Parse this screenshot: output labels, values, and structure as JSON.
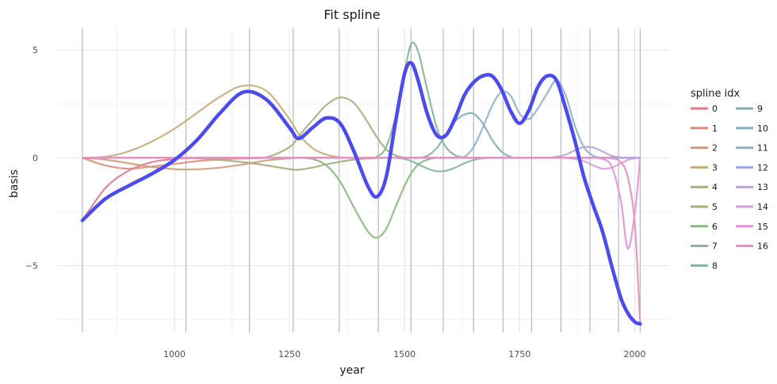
{
  "chart_data": {
    "type": "line",
    "title": "Fit spline",
    "xlabel": "year",
    "ylabel": "basis",
    "xlim": [
      745,
      2075
    ],
    "ylim": [
      -8.1,
      6.0
    ],
    "x_ticks": [
      1000,
      1250,
      1500,
      1750,
      2000
    ],
    "x_tick_labels": [
      "1000",
      "1250",
      "1500",
      "1750",
      "2000"
    ],
    "y_ticks": [
      -5,
      0,
      5
    ],
    "y_tick_labels": [
      "−5",
      "0",
      "5"
    ],
    "grid": true,
    "legend_title": "spline idx",
    "legend_position": "right",
    "knots": [
      800,
      1025,
      1163,
      1258,
      1358,
      1443,
      1514,
      1584,
      1650,
      1714,
      1776,
      1840,
      1903,
      1965,
      2012
    ],
    "x": [
      800,
      850,
      900,
      950,
      1000,
      1050,
      1100,
      1150,
      1200,
      1250,
      1270,
      1300,
      1330,
      1360,
      1390,
      1420,
      1440,
      1460,
      1480,
      1500,
      1515,
      1530,
      1550,
      1570,
      1590,
      1610,
      1630,
      1650,
      1670,
      1690,
      1710,
      1730,
      1750,
      1770,
      1790,
      1810,
      1830,
      1850,
      1870,
      1890,
      1910,
      1930,
      1950,
      1970,
      1985,
      2000,
      2012
    ],
    "series": [
      {
        "name": "0",
        "color": "#e07b87",
        "values": [
          -2.9,
          -1.4,
          -0.6,
          -0.2,
          -0.05,
          0,
          0,
          0,
          0,
          0,
          0,
          0,
          0,
          0,
          0,
          0,
          0,
          0,
          0,
          0,
          0,
          0,
          0,
          0,
          0,
          0,
          0,
          0,
          0,
          0,
          0,
          0,
          0,
          0,
          0,
          0,
          0,
          0,
          0,
          0,
          0,
          0,
          0,
          0,
          0,
          0,
          0
        ]
      },
      {
        "name": "1",
        "color": "#de8d7c",
        "values": [
          0,
          -0.35,
          -0.5,
          -0.4,
          -0.28,
          -0.15,
          -0.07,
          -0.03,
          0,
          0,
          0,
          0,
          0,
          0,
          0,
          0,
          0,
          0,
          0,
          0,
          0,
          0,
          0,
          0,
          0,
          0,
          0,
          0,
          0,
          0,
          0,
          0,
          0,
          0,
          0,
          0,
          0,
          0,
          0,
          0,
          0,
          0,
          0,
          0,
          0,
          0,
          0
        ]
      },
      {
        "name": "2",
        "color": "#cf9c77",
        "values": [
          0,
          -0.08,
          -0.25,
          -0.42,
          -0.52,
          -0.53,
          -0.45,
          -0.3,
          -0.12,
          -0.02,
          0,
          0,
          0,
          0,
          0,
          0,
          0,
          0,
          0,
          0,
          0,
          0,
          0,
          0,
          0,
          0,
          0,
          0,
          0,
          0,
          0,
          0,
          0,
          0,
          0,
          0,
          0,
          0,
          0,
          0,
          0,
          0,
          0,
          0,
          0,
          0,
          0
        ]
      },
      {
        "name": "3",
        "color": "#c8ac7a",
        "values": [
          0,
          0.05,
          0.3,
          0.75,
          1.35,
          2.1,
          2.85,
          3.35,
          3.1,
          1.8,
          1.1,
          0.45,
          0.15,
          0.03,
          0,
          0,
          0,
          0,
          0,
          0,
          0,
          0,
          0,
          0,
          0,
          0,
          0,
          0,
          0,
          0,
          0,
          0,
          0,
          0,
          0,
          0,
          0,
          0,
          0,
          0,
          0,
          0,
          0,
          0,
          0,
          0,
          0
        ]
      },
      {
        "name": "4",
        "color": "#aaab7c",
        "values": [
          0,
          0,
          0,
          0,
          0,
          -0.02,
          -0.1,
          -0.2,
          -0.35,
          -0.52,
          -0.55,
          -0.45,
          -0.3,
          -0.18,
          -0.08,
          -0.03,
          -0.01,
          0,
          0,
          0,
          0,
          0,
          0,
          0,
          0,
          0,
          0,
          0,
          0,
          0,
          0,
          0,
          0,
          0,
          0,
          0,
          0,
          0,
          0,
          0,
          0,
          0,
          0,
          0,
          0,
          0,
          0
        ]
      },
      {
        "name": "5",
        "color": "#9eb27c",
        "values": [
          0,
          0,
          0,
          0,
          0,
          0,
          0,
          0,
          0.03,
          0.5,
          1.0,
          1.75,
          2.45,
          2.8,
          2.55,
          1.65,
          0.95,
          0.4,
          0.12,
          0.02,
          0,
          0,
          0,
          0,
          0,
          0,
          0,
          0,
          0,
          0,
          0,
          0,
          0,
          0,
          0,
          0,
          0,
          0,
          0,
          0,
          0,
          0,
          0,
          0,
          0,
          0,
          0
        ]
      },
      {
        "name": "6",
        "color": "#8db684",
        "values": [
          0,
          0,
          0,
          0,
          0,
          0,
          0,
          0,
          0,
          0,
          0,
          -0.05,
          -0.35,
          -1.1,
          -2.3,
          -3.4,
          -3.7,
          -3.3,
          -2.3,
          -1.3,
          -0.7,
          -0.3,
          -0.08,
          0,
          0,
          0,
          0,
          0,
          0,
          0,
          0,
          0,
          0,
          0,
          0,
          0,
          0,
          0,
          0,
          0,
          0,
          0,
          0,
          0,
          0,
          0,
          0
        ]
      },
      {
        "name": "7",
        "color": "#85b497",
        "values": [
          0,
          0,
          0,
          0,
          0,
          0,
          0,
          0,
          0,
          0,
          0,
          0,
          0,
          0,
          0,
          0,
          0.05,
          0.5,
          1.9,
          4.0,
          5.3,
          4.9,
          3.1,
          1.4,
          0.5,
          0.12,
          0.02,
          0,
          0,
          0,
          0,
          0,
          0,
          0,
          0,
          0,
          0,
          0,
          0,
          0,
          0,
          0,
          0,
          0,
          0,
          0,
          0
        ]
      },
      {
        "name": "8",
        "color": "#84b1a3",
        "values": [
          0,
          0,
          0,
          0,
          0,
          0,
          0,
          0,
          0,
          0,
          0,
          0,
          0,
          0,
          0,
          0,
          0,
          0,
          0,
          -0.05,
          -0.15,
          -0.3,
          -0.5,
          -0.62,
          -0.6,
          -0.45,
          -0.25,
          -0.1,
          -0.02,
          0,
          0,
          0,
          0,
          0,
          0,
          0,
          0,
          0,
          0,
          0,
          0,
          0,
          0,
          0,
          0,
          0,
          0
        ]
      },
      {
        "name": "9",
        "color": "#82adaf",
        "values": [
          0,
          0,
          0,
          0,
          0,
          0,
          0,
          0,
          0,
          0,
          0,
          0,
          0,
          0,
          0,
          0,
          0,
          0,
          0,
          0,
          0,
          0,
          0.1,
          0.45,
          1.1,
          1.7,
          2.0,
          2.05,
          1.6,
          0.85,
          0.3,
          0.05,
          0,
          0,
          0,
          0,
          0,
          0,
          0,
          0,
          0,
          0,
          0,
          0,
          0,
          0,
          0
        ]
      },
      {
        "name": "10",
        "color": "#86aebc",
        "values": [
          0,
          0,
          0,
          0,
          0,
          0,
          0,
          0,
          0,
          0,
          0,
          0,
          0,
          0,
          0,
          0,
          0,
          0,
          0,
          0,
          0,
          0,
          0,
          0,
          0,
          0,
          0,
          0,
          0,
          0,
          0,
          0,
          0,
          0,
          0,
          0,
          0,
          0,
          0,
          0,
          0,
          0,
          0,
          0,
          0,
          0,
          0
        ]
      },
      {
        "name": "11",
        "color": "#8fafcb",
        "values": [
          0,
          0,
          0,
          0,
          0,
          0,
          0,
          0,
          0,
          0,
          0,
          0,
          0,
          0,
          0,
          0,
          0,
          0,
          0,
          0,
          0,
          0,
          0,
          0,
          0,
          0,
          0.05,
          0.5,
          1.4,
          2.4,
          3.05,
          2.9,
          2.05,
          1.8,
          2.3,
          3.0,
          3.6,
          2.9,
          1.5,
          0.5,
          0.1,
          0,
          0,
          0,
          0,
          0,
          0
        ]
      },
      {
        "name": "12",
        "color": "#9fa6df",
        "values": [
          0,
          0,
          0,
          0,
          0,
          0,
          0,
          0,
          0,
          0,
          0,
          0,
          0,
          0,
          0,
          0,
          0,
          0,
          0,
          0,
          0,
          0,
          0,
          0,
          0,
          0,
          0,
          0,
          0,
          0,
          0,
          0,
          0,
          0,
          0,
          0,
          0,
          0,
          0,
          0,
          0,
          0,
          0,
          0,
          0,
          0,
          0
        ]
      },
      {
        "name": "13",
        "color": "#b9a1dc",
        "values": [
          0,
          0,
          0,
          0,
          0,
          0,
          0,
          0,
          0,
          0,
          0,
          0,
          0,
          0,
          0,
          0,
          0,
          0,
          0,
          0,
          0,
          0,
          0,
          0,
          0,
          0,
          0,
          0,
          0,
          0,
          0,
          0,
          0,
          0,
          0,
          0,
          0.05,
          0.15,
          0.35,
          0.5,
          0.48,
          0.3,
          0.1,
          0.02,
          0,
          0,
          0
        ]
      },
      {
        "name": "14",
        "color": "#d69de1",
        "values": [
          0,
          0,
          0,
          0,
          0,
          0,
          0,
          0,
          0,
          0,
          0,
          0,
          0,
          0,
          0,
          0,
          0,
          0,
          0,
          0,
          0,
          0,
          0,
          0,
          0,
          0,
          0,
          0,
          0,
          0,
          0,
          0,
          0,
          0,
          0,
          0,
          0,
          0,
          -0.05,
          -0.15,
          -0.35,
          -0.5,
          -0.45,
          -0.25,
          -0.1,
          -0.02,
          0
        ]
      },
      {
        "name": "15",
        "color": "#e394d4",
        "values": [
          0,
          0,
          0,
          0,
          0,
          0,
          0,
          0,
          0,
          0,
          0,
          0,
          0,
          0,
          0,
          0,
          0,
          0,
          0,
          0,
          0,
          0,
          0,
          0,
          0,
          0,
          0,
          0,
          0,
          0,
          0,
          0,
          0,
          0,
          0,
          0,
          0,
          0,
          0,
          0,
          0,
          -0.05,
          -0.4,
          -2.0,
          -4.2,
          -2.6,
          0
        ]
      },
      {
        "name": "16",
        "color": "#e590bb",
        "values": [
          0,
          0,
          0,
          0,
          0,
          0,
          0,
          0,
          0,
          0,
          0,
          0,
          0,
          0,
          0,
          0,
          0,
          0,
          0,
          0,
          0,
          0,
          0,
          0,
          0,
          0,
          0,
          0,
          0,
          0,
          0,
          0,
          0,
          0,
          0,
          0,
          0,
          0,
          0,
          0,
          0,
          0,
          -0.02,
          -0.2,
          -0.9,
          -3.0,
          -7.7
        ]
      }
    ],
    "fit": {
      "color": "#4b4bf0",
      "values": [
        -2.9,
        -1.9,
        -1.3,
        -0.75,
        -0.1,
        0.85,
        2.1,
        3.05,
        2.7,
        1.4,
        0.9,
        1.4,
        1.85,
        1.6,
        0.3,
        -1.3,
        -1.8,
        -0.9,
        1.6,
        3.9,
        4.4,
        3.55,
        2.0,
        1.05,
        1.05,
        1.85,
        2.9,
        3.5,
        3.8,
        3.8,
        3.2,
        2.2,
        1.6,
        2.2,
        3.3,
        3.8,
        3.6,
        2.3,
        0.8,
        -0.9,
        -2.2,
        -3.4,
        -5.0,
        -6.5,
        -7.2,
        -7.6,
        -7.7
      ]
    }
  }
}
